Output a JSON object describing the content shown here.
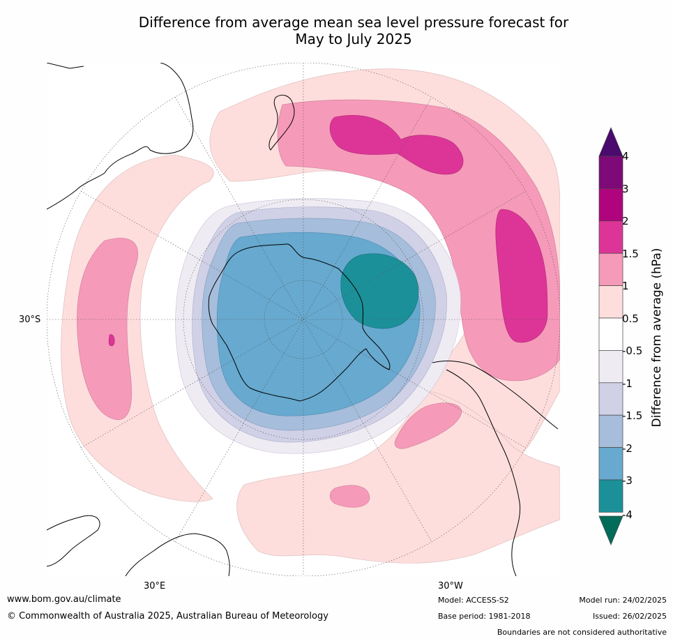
{
  "title_line1": "Difference from average mean sea level pressure forecast for",
  "title_line2": "May to July 2025",
  "map": {
    "projection": "south-polar-stereographic",
    "lat_label": "30°S",
    "lon_labels": [
      "30°E",
      "30°W"
    ],
    "ocean_color": "#ffffff",
    "land_outline_color": "#000000"
  },
  "colorbar": {
    "label": "Difference from average (hPa)",
    "ticks": [
      "4",
      "3",
      "2",
      "1.5",
      "1",
      "0.5",
      "-0.5",
      "-1",
      "-1.5",
      "-2",
      "-3",
      "-4"
    ],
    "colors": {
      "above_4": "#4a0a6e",
      "3_to_4": "#7d0a78",
      "2_to_3": "#b0047e",
      "1.5_to_2": "#dd3597",
      "1_to_1.5": "#f69ab9",
      "0.5_to_1": "#fddedd",
      "-0.5_to_0.5": "#ffffff",
      "-1_to_-0.5": "#efebf3",
      "-1.5_to_-1": "#d0d1e6",
      "-2_to_-1.5": "#a6bddb",
      "-3_to_-2": "#67a9cf",
      "-4_to_-3": "#1c9099",
      "below_-4": "#016c59"
    }
  },
  "footer": {
    "website": "www.bom.gov.au/climate",
    "copyright": "© Commonwealth of Australia 2025, Australian Bureau of Meteorology",
    "model": "Model: ACCESS-S2",
    "base_period": "Base period: 1981-2018",
    "model_run": "Model run: 24/02/2025",
    "issued": "Issued: 26/02/2025",
    "disclaimer": "Boundaries are not considered authoritative"
  }
}
